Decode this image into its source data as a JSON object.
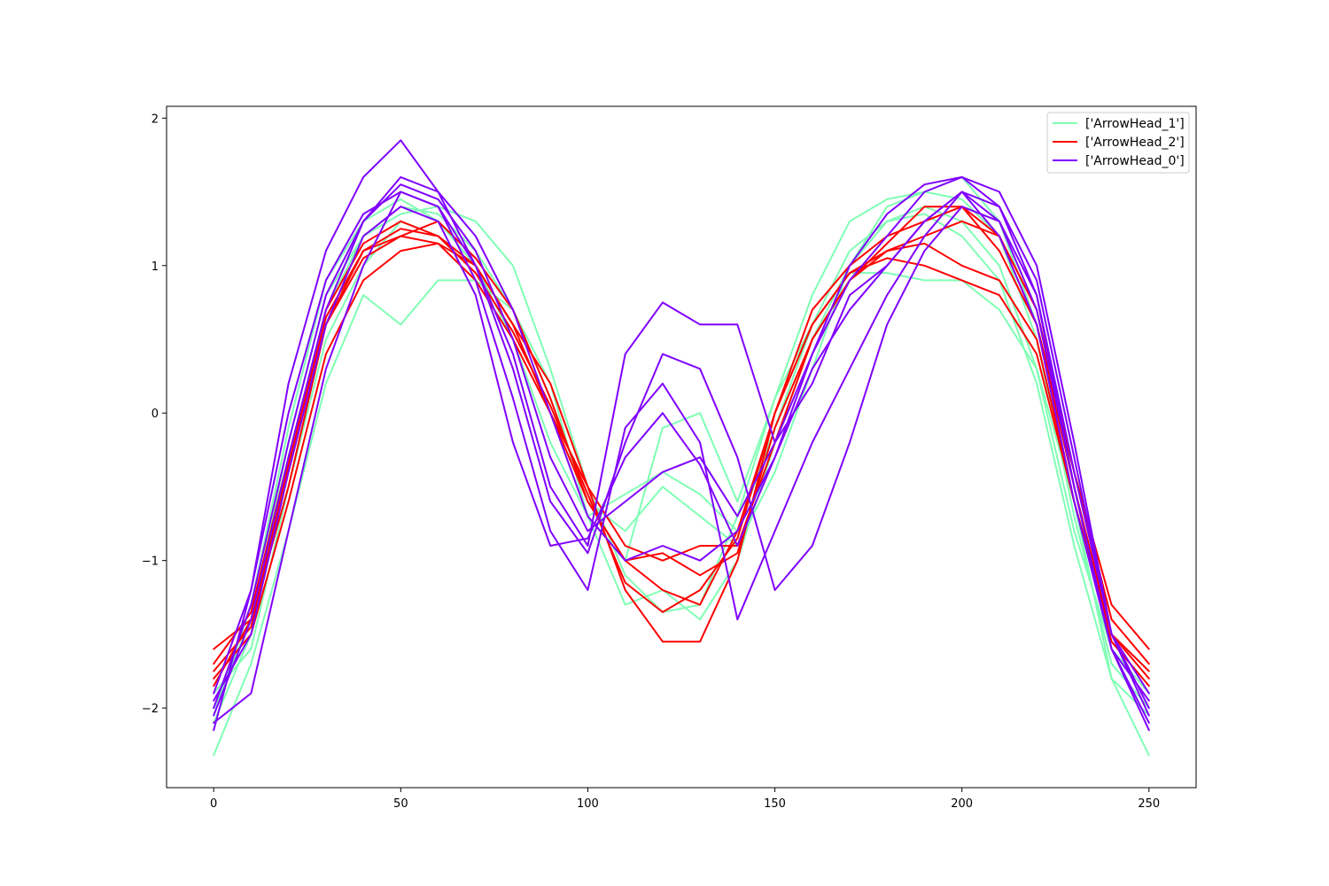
{
  "chart_data": {
    "type": "line",
    "title": "",
    "xlabel": "",
    "ylabel": "",
    "xlim": [
      -12.6,
      262.6
    ],
    "ylim": [
      -2.54,
      2.08
    ],
    "xticks": [
      0,
      50,
      100,
      150,
      200,
      250
    ],
    "yticks": [
      -2,
      -1,
      0,
      1,
      2
    ],
    "ytick_labels": [
      "−2",
      "−1",
      "0",
      "1",
      "2"
    ],
    "grid": false,
    "legend_placement": "top-right",
    "legend": [
      {
        "label": "['ArrowHead_1']",
        "color": "#80ffb4"
      },
      {
        "label": "['ArrowHead_2']",
        "color": "#ff0000"
      },
      {
        "label": "['ArrowHead_0']",
        "color": "#8000ff"
      }
    ],
    "series": [
      {
        "class": "ArrowHead_1",
        "color": "#80ffb4",
        "x": [
          0,
          10,
          20,
          30,
          40,
          50,
          60,
          70,
          80,
          90,
          100,
          110,
          120,
          130,
          140,
          150,
          160,
          170,
          180,
          190,
          200,
          210,
          220,
          230,
          240,
          250
        ],
        "y": [
          -2.32,
          -1.7,
          -0.8,
          0.2,
          0.8,
          0.6,
          0.9,
          0.9,
          0.7,
          0.2,
          -0.7,
          -1.0,
          -0.1,
          0.0,
          -0.6,
          0.1,
          0.6,
          0.95,
          0.95,
          0.9,
          0.9,
          0.7,
          0.3,
          -0.6,
          -1.8,
          -2.32
        ]
      },
      {
        "class": "ArrowHead_1",
        "color": "#80ffb4",
        "x": [
          0,
          10,
          20,
          30,
          40,
          50,
          60,
          70,
          80,
          90,
          100,
          110,
          120,
          130,
          140,
          150,
          160,
          170,
          180,
          190,
          200,
          210,
          220,
          230,
          240,
          250
        ],
        "y": [
          -2.1,
          -1.5,
          -0.3,
          0.7,
          1.2,
          1.35,
          1.4,
          1.3,
          1.0,
          0.3,
          -0.5,
          -1.1,
          -1.35,
          -1.3,
          -0.7,
          0.1,
          0.8,
          1.3,
          1.45,
          1.5,
          1.6,
          1.3,
          0.6,
          -0.5,
          -1.6,
          -2.1
        ]
      },
      {
        "class": "ArrowHead_1",
        "color": "#80ffb4",
        "x": [
          0,
          10,
          20,
          30,
          40,
          50,
          60,
          70,
          80,
          90,
          100,
          110,
          120,
          130,
          140,
          150,
          160,
          170,
          180,
          190,
          200,
          210,
          220,
          230,
          240,
          250
        ],
        "y": [
          -2.0,
          -1.4,
          -0.2,
          0.8,
          1.2,
          1.4,
          1.35,
          1.1,
          0.7,
          0.1,
          -0.6,
          -0.8,
          -0.5,
          -0.7,
          -0.9,
          -0.4,
          0.3,
          1.0,
          1.4,
          1.5,
          1.45,
          1.2,
          0.5,
          -0.7,
          -1.7,
          -2.0
        ]
      },
      {
        "class": "ArrowHead_1",
        "color": "#80ffb4",
        "x": [
          0,
          10,
          20,
          30,
          40,
          50,
          60,
          70,
          80,
          90,
          100,
          110,
          120,
          130,
          140,
          150,
          160,
          170,
          180,
          190,
          200,
          210,
          220,
          230,
          240,
          250
        ],
        "y": [
          -1.9,
          -1.6,
          -0.5,
          0.5,
          1.0,
          1.3,
          1.2,
          1.0,
          0.6,
          0.0,
          -0.7,
          -1.3,
          -1.2,
          -1.4,
          -1.0,
          -0.2,
          0.5,
          1.0,
          1.3,
          1.4,
          1.3,
          1.0,
          0.3,
          -0.8,
          -1.6,
          -1.9
        ]
      },
      {
        "class": "ArrowHead_1",
        "color": "#80ffb4",
        "x": [
          0,
          10,
          20,
          30,
          40,
          50,
          60,
          70,
          80,
          90,
          100,
          110,
          120,
          130,
          140,
          150,
          160,
          170,
          180,
          190,
          200,
          210,
          220,
          230,
          240,
          250
        ],
        "y": [
          -2.05,
          -1.3,
          -0.1,
          0.9,
          1.3,
          1.45,
          1.3,
          1.0,
          0.5,
          -0.2,
          -0.7,
          -0.55,
          -0.4,
          -0.55,
          -0.8,
          -0.1,
          0.6,
          1.1,
          1.3,
          1.35,
          1.2,
          0.9,
          0.2,
          -0.9,
          -1.8,
          -2.05
        ]
      },
      {
        "class": "ArrowHead_2",
        "color": "#ff0000",
        "x": [
          0,
          10,
          20,
          30,
          40,
          50,
          60,
          70,
          80,
          90,
          100,
          110,
          120,
          130,
          140,
          150,
          160,
          170,
          180,
          190,
          200,
          210,
          220,
          230,
          240,
          250
        ],
        "y": [
          -1.6,
          -1.4,
          -0.5,
          0.6,
          1.1,
          1.2,
          1.15,
          0.9,
          0.5,
          0.0,
          -0.5,
          -0.9,
          -1.0,
          -0.9,
          -0.9,
          -0.2,
          0.5,
          0.9,
          1.1,
          1.2,
          1.3,
          1.2,
          0.6,
          -0.4,
          -1.3,
          -1.6
        ]
      },
      {
        "class": "ArrowHead_2",
        "color": "#ff0000",
        "x": [
          0,
          10,
          20,
          30,
          40,
          50,
          60,
          70,
          80,
          90,
          100,
          110,
          120,
          130,
          140,
          150,
          160,
          170,
          180,
          190,
          200,
          210,
          220,
          230,
          240,
          250
        ],
        "y": [
          -1.7,
          -1.35,
          -0.3,
          0.7,
          1.15,
          1.3,
          1.2,
          1.0,
          0.6,
          0.2,
          -0.5,
          -1.2,
          -1.55,
          -1.55,
          -1.0,
          0.0,
          0.7,
          1.0,
          1.2,
          1.3,
          1.4,
          1.2,
          0.7,
          -0.4,
          -1.4,
          -1.7
        ]
      },
      {
        "class": "ArrowHead_2",
        "color": "#ff0000",
        "x": [
          0,
          10,
          20,
          30,
          40,
          50,
          60,
          70,
          80,
          90,
          100,
          110,
          120,
          130,
          140,
          150,
          160,
          170,
          180,
          190,
          200,
          210,
          220,
          230,
          240,
          250
        ],
        "y": [
          -1.8,
          -1.5,
          -0.6,
          0.4,
          0.9,
          1.1,
          1.15,
          1.0,
          0.6,
          0.0,
          -0.6,
          -1.0,
          -1.2,
          -1.3,
          -0.8,
          0.0,
          0.6,
          0.95,
          1.05,
          1.0,
          0.9,
          0.8,
          0.4,
          -0.6,
          -1.5,
          -1.8
        ]
      },
      {
        "class": "ArrowHead_2",
        "color": "#ff0000",
        "x": [
          0,
          10,
          20,
          30,
          40,
          50,
          60,
          70,
          80,
          90,
          100,
          110,
          120,
          130,
          140,
          150,
          160,
          170,
          180,
          190,
          200,
          210,
          220,
          230,
          240,
          250
        ],
        "y": [
          -1.75,
          -1.45,
          -0.4,
          0.6,
          1.05,
          1.2,
          1.3,
          1.05,
          0.7,
          0.1,
          -0.6,
          -1.0,
          -0.95,
          -1.1,
          -0.95,
          -0.1,
          0.5,
          0.9,
          1.15,
          1.4,
          1.4,
          1.1,
          0.6,
          -0.5,
          -1.5,
          -1.75
        ]
      },
      {
        "class": "ArrowHead_2",
        "color": "#ff0000",
        "x": [
          0,
          10,
          20,
          30,
          40,
          50,
          60,
          70,
          80,
          90,
          100,
          110,
          120,
          130,
          140,
          150,
          160,
          170,
          180,
          190,
          200,
          210,
          220,
          230,
          240,
          250
        ],
        "y": [
          -1.85,
          -1.4,
          -0.35,
          0.65,
          1.1,
          1.25,
          1.2,
          0.95,
          0.55,
          0.05,
          -0.55,
          -1.15,
          -1.35,
          -1.2,
          -0.85,
          0.0,
          0.6,
          0.95,
          1.1,
          1.15,
          1.0,
          0.9,
          0.5,
          -0.6,
          -1.55,
          -1.85
        ]
      },
      {
        "class": "ArrowHead_0",
        "color": "#8000ff",
        "x": [
          0,
          10,
          20,
          30,
          40,
          50,
          60,
          70,
          80,
          90,
          100,
          110,
          120,
          130,
          140,
          150,
          160,
          170,
          180,
          190,
          200,
          210,
          220,
          230,
          240,
          250
        ],
        "y": [
          -2.15,
          -1.2,
          0.2,
          1.1,
          1.6,
          1.85,
          1.5,
          1.0,
          0.4,
          -0.5,
          -0.9,
          0.4,
          0.75,
          0.6,
          0.6,
          -0.2,
          0.2,
          0.8,
          1.0,
          1.3,
          1.5,
          1.4,
          0.8,
          -0.5,
          -1.6,
          -2.15
        ]
      },
      {
        "class": "ArrowHead_0",
        "color": "#8000ff",
        "x": [
          0,
          10,
          20,
          30,
          40,
          50,
          60,
          70,
          80,
          90,
          100,
          110,
          120,
          130,
          140,
          150,
          160,
          170,
          180,
          190,
          200,
          210,
          220,
          230,
          240,
          250
        ],
        "y": [
          -2.1,
          -1.9,
          -0.8,
          0.3,
          1.0,
          1.5,
          1.4,
          0.9,
          0.1,
          -0.8,
          -1.2,
          -0.1,
          0.2,
          -0.2,
          -1.4,
          -0.8,
          -0.2,
          0.3,
          0.8,
          1.2,
          1.5,
          1.3,
          0.7,
          -0.5,
          -1.6,
          -2.1
        ]
      },
      {
        "class": "ArrowHead_0",
        "color": "#8000ff",
        "x": [
          0,
          10,
          20,
          30,
          40,
          50,
          60,
          70,
          80,
          90,
          100,
          110,
          120,
          130,
          140,
          150,
          160,
          170,
          180,
          190,
          200,
          210,
          220,
          230,
          240,
          250
        ],
        "y": [
          -2.0,
          -1.3,
          -0.2,
          0.8,
          1.3,
          1.55,
          1.45,
          1.1,
          0.5,
          -0.3,
          -0.8,
          -0.6,
          -0.4,
          -0.3,
          -0.7,
          -0.2,
          0.4,
          0.9,
          1.2,
          1.5,
          1.6,
          1.4,
          0.9,
          -0.3,
          -1.5,
          -2.0
        ]
      },
      {
        "class": "ArrowHead_0",
        "color": "#8000ff",
        "x": [
          0,
          10,
          20,
          30,
          40,
          50,
          60,
          70,
          80,
          90,
          100,
          110,
          120,
          130,
          140,
          150,
          160,
          170,
          180,
          190,
          200,
          210,
          220,
          230,
          240,
          250
        ],
        "y": [
          -1.95,
          -1.5,
          -0.4,
          0.6,
          1.2,
          1.4,
          1.3,
          0.8,
          -0.2,
          -0.9,
          -0.85,
          -0.3,
          0.0,
          -0.35,
          -0.9,
          -0.3,
          0.3,
          0.7,
          1.0,
          1.3,
          1.5,
          1.2,
          0.6,
          -0.6,
          -1.6,
          -1.95
        ]
      },
      {
        "class": "ArrowHead_0",
        "color": "#8000ff",
        "x": [
          0,
          10,
          20,
          30,
          40,
          50,
          60,
          70,
          80,
          90,
          100,
          110,
          120,
          130,
          140,
          150,
          160,
          170,
          180,
          190,
          200,
          210,
          220,
          230,
          240,
          250
        ],
        "y": [
          -2.05,
          -1.4,
          -0.3,
          0.7,
          1.3,
          1.6,
          1.5,
          1.2,
          0.7,
          0.0,
          -0.7,
          -1.0,
          -0.9,
          -1.0,
          -0.8,
          -0.3,
          0.4,
          1.0,
          1.35,
          1.55,
          1.6,
          1.5,
          1.0,
          -0.2,
          -1.5,
          -2.05
        ]
      },
      {
        "class": "ArrowHead_0",
        "color": "#8000ff",
        "x": [
          0,
          10,
          20,
          30,
          40,
          50,
          60,
          70,
          80,
          90,
          100,
          110,
          120,
          130,
          140,
          150,
          160,
          170,
          180,
          190,
          200,
          210,
          220,
          230,
          240,
          250
        ],
        "y": [
          -1.9,
          -1.2,
          0.0,
          0.9,
          1.35,
          1.5,
          1.4,
          1.0,
          0.3,
          -0.6,
          -0.95,
          -0.2,
          0.4,
          0.3,
          -0.3,
          -1.2,
          -0.9,
          -0.2,
          0.6,
          1.1,
          1.4,
          1.3,
          0.8,
          -0.4,
          -1.5,
          -1.9
        ]
      }
    ]
  }
}
